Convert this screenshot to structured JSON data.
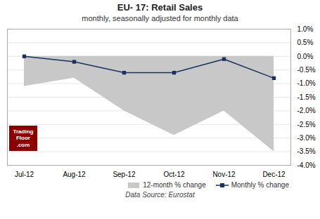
{
  "chart_data": {
    "type": "line",
    "title": "EU- 17:  Retail Sales",
    "subtitle": "monthly, seasonally adjusted for monthly data",
    "caption": "Data Source: Eurostat",
    "categories": [
      "Jul-12",
      "Aug-12",
      "Sep-12",
      "Oct-12",
      "Nov-12",
      "Dec-12"
    ],
    "series": [
      {
        "name": "12-month % change",
        "type": "area",
        "color": "#c8c8c8",
        "values": [
          -1.1,
          -0.8,
          -2.0,
          -2.9,
          -2.0,
          -3.5
        ]
      },
      {
        "name": "Monthly % change",
        "type": "line",
        "color": "#1a3060",
        "marker": "square",
        "values": [
          0.0,
          -0.2,
          -0.6,
          -0.6,
          -0.1,
          -0.8
        ]
      }
    ],
    "ylim": [
      -4.0,
      1.0
    ],
    "yticks": [
      {
        "value": 1.0,
        "label": "1.0%"
      },
      {
        "value": 0.5,
        "label": "0.5%"
      },
      {
        "value": 0.0,
        "label": "0.0%"
      },
      {
        "value": -0.5,
        "label": "-0.5%"
      },
      {
        "value": -1.0,
        "label": "-1.0%"
      },
      {
        "value": -1.5,
        "label": "-1.5%"
      },
      {
        "value": -2.0,
        "label": "-2.0%"
      },
      {
        "value": -2.5,
        "label": "-2.5%"
      },
      {
        "value": -3.0,
        "label": "-3.0%"
      },
      {
        "value": -3.5,
        "label": "-3.5%"
      },
      {
        "value": -4.0,
        "label": "-4.0%"
      }
    ],
    "grid": true,
    "legend": "lower right",
    "annotations": [
      {
        "text": "Trading\nFloor\n.com",
        "color": "#8b0000"
      }
    ]
  }
}
